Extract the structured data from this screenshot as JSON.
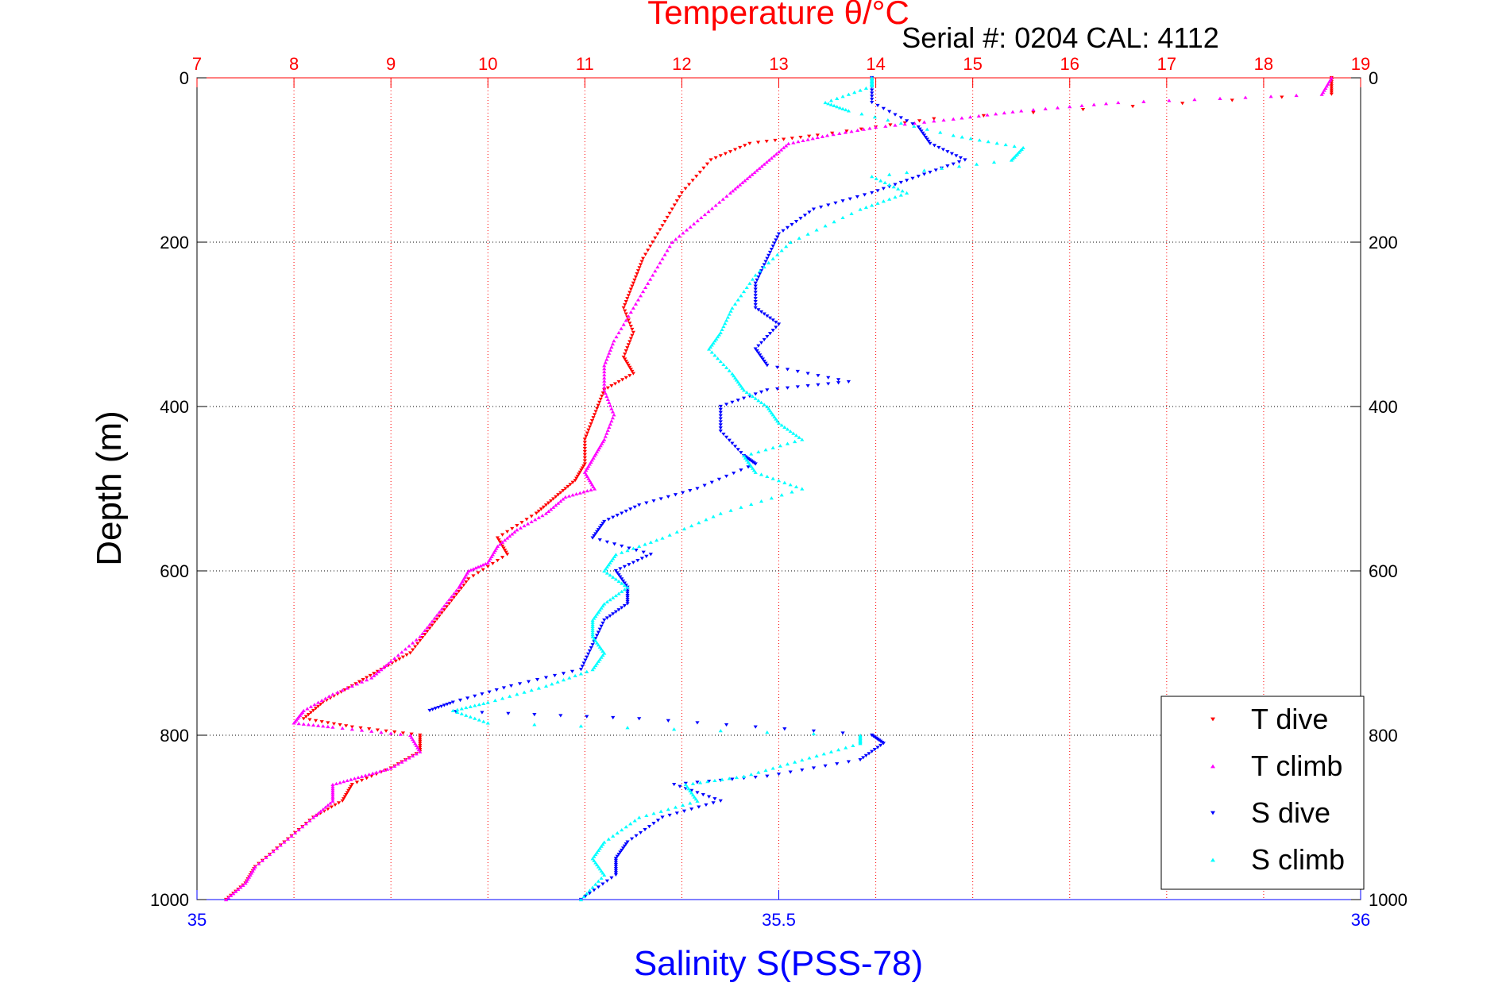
{
  "figure": {
    "serial_label": "Serial #: 0204  CAL: 4112"
  },
  "legend": {
    "entries": [
      "T dive",
      "T climb",
      "S dive",
      "S climb"
    ],
    "colors": [
      "#ff0000",
      "#ff00ff",
      "#0000ff",
      "#00ffff"
    ]
  },
  "chart_data": {
    "type": "scatter",
    "title": "Temperature θ/°C",
    "xlabel_top": "Temperature θ/°C",
    "xlabel_bottom": "Salinity S(PSS-78)",
    "ylabel": "Depth (m)",
    "ylim": [
      0,
      1000
    ],
    "y_reversed": true,
    "yticks": [
      0,
      200,
      400,
      600,
      800,
      1000
    ],
    "x_top_lim": [
      7,
      19
    ],
    "x_top_ticks": [
      7,
      8,
      9,
      10,
      11,
      12,
      13,
      14,
      15,
      16,
      17,
      18,
      19
    ],
    "x_bottom_lim": [
      35,
      36
    ],
    "x_bottom_ticks": [
      35,
      35.5,
      36
    ],
    "grid": true,
    "legend_position": "bottom-right",
    "colors": {
      "temperature_axis": "#ff0000",
      "salinity_axis": "#0000ff"
    },
    "series": [
      {
        "name": "T dive",
        "axis": "temperature",
        "color": "#ff0000",
        "marker": "triangle-down",
        "points": [
          [
            18.7,
            0
          ],
          [
            18.7,
            20
          ],
          [
            14.6,
            50
          ],
          [
            13.4,
            70
          ],
          [
            12.7,
            80
          ],
          [
            12.3,
            100
          ],
          [
            12.0,
            140
          ],
          [
            11.8,
            180
          ],
          [
            11.6,
            220
          ],
          [
            11.5,
            250
          ],
          [
            11.4,
            280
          ],
          [
            11.5,
            310
          ],
          [
            11.4,
            340
          ],
          [
            11.5,
            360
          ],
          [
            11.2,
            380
          ],
          [
            11.1,
            410
          ],
          [
            11.0,
            440
          ],
          [
            11.0,
            470
          ],
          [
            10.9,
            490
          ],
          [
            10.7,
            510
          ],
          [
            10.5,
            530
          ],
          [
            10.1,
            560
          ],
          [
            10.2,
            580
          ],
          [
            9.8,
            610
          ],
          [
            9.6,
            640
          ],
          [
            9.4,
            670
          ],
          [
            9.2,
            700
          ],
          [
            8.9,
            720
          ],
          [
            8.6,
            740
          ],
          [
            8.3,
            760
          ],
          [
            8.1,
            780
          ],
          [
            8.6,
            790
          ],
          [
            9.3,
            800
          ],
          [
            9.3,
            820
          ],
          [
            9.0,
            840
          ],
          [
            8.6,
            860
          ],
          [
            8.5,
            880
          ],
          [
            8.2,
            900
          ],
          [
            7.9,
            930
          ],
          [
            7.6,
            960
          ],
          [
            7.5,
            980
          ],
          [
            7.3,
            1000
          ]
        ]
      },
      {
        "name": "T climb",
        "axis": "temperature",
        "color": "#ff00ff",
        "marker": "triangle-up",
        "points": [
          [
            7.3,
            1000
          ],
          [
            7.5,
            980
          ],
          [
            7.6,
            960
          ],
          [
            7.9,
            930
          ],
          [
            8.2,
            900
          ],
          [
            8.4,
            880
          ],
          [
            8.4,
            860
          ],
          [
            8.7,
            850
          ],
          [
            9.0,
            840
          ],
          [
            9.3,
            820
          ],
          [
            9.2,
            800
          ],
          [
            8.4,
            790
          ],
          [
            8.0,
            785
          ],
          [
            8.1,
            770
          ],
          [
            8.4,
            750
          ],
          [
            8.8,
            730
          ],
          [
            9.0,
            710
          ],
          [
            9.3,
            680
          ],
          [
            9.5,
            650
          ],
          [
            9.7,
            620
          ],
          [
            9.8,
            600
          ],
          [
            10.0,
            590
          ],
          [
            10.1,
            570
          ],
          [
            10.3,
            550
          ],
          [
            10.6,
            530
          ],
          [
            10.8,
            510
          ],
          [
            11.1,
            500
          ],
          [
            11.0,
            480
          ],
          [
            11.1,
            460
          ],
          [
            11.2,
            440
          ],
          [
            11.3,
            410
          ],
          [
            11.2,
            380
          ],
          [
            11.2,
            350
          ],
          [
            11.3,
            320
          ],
          [
            11.5,
            280
          ],
          [
            11.7,
            240
          ],
          [
            11.9,
            200
          ],
          [
            12.2,
            170
          ],
          [
            12.5,
            140
          ],
          [
            12.7,
            120
          ],
          [
            12.9,
            100
          ],
          [
            13.1,
            80
          ],
          [
            13.5,
            70
          ],
          [
            14.0,
            60
          ],
          [
            14.8,
            50
          ],
          [
            15.5,
            40
          ],
          [
            16.5,
            30
          ],
          [
            18.6,
            20
          ],
          [
            18.7,
            0
          ]
        ]
      },
      {
        "name": "S dive",
        "axis": "salinity",
        "color": "#0000ff",
        "marker": "triangle-down",
        "points": [
          [
            35.58,
            0
          ],
          [
            35.58,
            30
          ],
          [
            35.62,
            60
          ],
          [
            35.63,
            80
          ],
          [
            35.66,
            100
          ],
          [
            35.62,
            120
          ],
          [
            35.58,
            140
          ],
          [
            35.53,
            160
          ],
          [
            35.5,
            190
          ],
          [
            35.49,
            220
          ],
          [
            35.48,
            250
          ],
          [
            35.48,
            280
          ],
          [
            35.5,
            300
          ],
          [
            35.48,
            330
          ],
          [
            35.49,
            350
          ],
          [
            35.56,
            370
          ],
          [
            35.49,
            380
          ],
          [
            35.45,
            400
          ],
          [
            35.45,
            430
          ],
          [
            35.47,
            460
          ],
          [
            35.48,
            470
          ],
          [
            35.43,
            500
          ],
          [
            35.38,
            520
          ],
          [
            35.35,
            540
          ],
          [
            35.34,
            560
          ],
          [
            35.39,
            580
          ],
          [
            35.36,
            600
          ],
          [
            35.37,
            620
          ],
          [
            35.37,
            640
          ],
          [
            35.35,
            660
          ],
          [
            35.34,
            690
          ],
          [
            35.33,
            720
          ],
          [
            35.27,
            740
          ],
          [
            35.22,
            760
          ],
          [
            35.2,
            770
          ],
          [
            35.38,
            780
          ],
          [
            35.58,
            800
          ],
          [
            35.59,
            810
          ],
          [
            35.57,
            830
          ],
          [
            35.49,
            850
          ],
          [
            35.41,
            860
          ],
          [
            35.45,
            880
          ],
          [
            35.4,
            900
          ],
          [
            35.37,
            930
          ],
          [
            35.36,
            950
          ],
          [
            35.36,
            970
          ],
          [
            35.33,
            1000
          ]
        ]
      },
      {
        "name": "S climb",
        "axis": "salinity",
        "color": "#00ffff",
        "marker": "triangle-up",
        "points": [
          [
            35.33,
            1000
          ],
          [
            35.35,
            970
          ],
          [
            35.34,
            950
          ],
          [
            35.35,
            930
          ],
          [
            35.38,
            900
          ],
          [
            35.43,
            880
          ],
          [
            35.42,
            860
          ],
          [
            35.47,
            850
          ],
          [
            35.52,
            830
          ],
          [
            35.57,
            810
          ],
          [
            35.57,
            800
          ],
          [
            35.25,
            785
          ],
          [
            35.22,
            770
          ],
          [
            35.25,
            760
          ],
          [
            35.3,
            740
          ],
          [
            35.34,
            720
          ],
          [
            35.35,
            700
          ],
          [
            35.34,
            680
          ],
          [
            35.34,
            660
          ],
          [
            35.35,
            640
          ],
          [
            35.37,
            620
          ],
          [
            35.35,
            600
          ],
          [
            35.36,
            580
          ],
          [
            35.4,
            560
          ],
          [
            35.45,
            530
          ],
          [
            35.52,
            500
          ],
          [
            35.48,
            480
          ],
          [
            35.47,
            460
          ],
          [
            35.52,
            440
          ],
          [
            35.5,
            420
          ],
          [
            35.49,
            400
          ],
          [
            35.47,
            380
          ],
          [
            35.46,
            360
          ],
          [
            35.44,
            330
          ],
          [
            35.45,
            310
          ],
          [
            35.46,
            280
          ],
          [
            35.48,
            240
          ],
          [
            35.51,
            200
          ],
          [
            35.57,
            160
          ],
          [
            35.61,
            140
          ],
          [
            35.58,
            120
          ],
          [
            35.7,
            100
          ],
          [
            35.71,
            85
          ],
          [
            35.65,
            70
          ],
          [
            35.56,
            40
          ],
          [
            35.54,
            30
          ],
          [
            35.58,
            10
          ],
          [
            35.58,
            0
          ]
        ]
      }
    ]
  }
}
